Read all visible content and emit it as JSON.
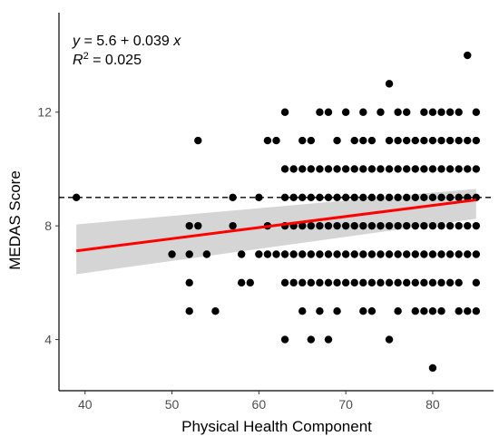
{
  "chart_data": {
    "type": "scatter",
    "title": "",
    "xlabel": "Physical Health Component",
    "ylabel": "MEDAS Score",
    "xlim": [
      37,
      87
    ],
    "ylim": [
      2.2,
      15.5
    ],
    "x_ticks": [
      40,
      50,
      60,
      70,
      80
    ],
    "y_ticks": [
      4,
      8,
      12
    ],
    "grid": false,
    "legend": "none",
    "reference_line": {
      "y": 9,
      "style": "dashed",
      "color": "#000000"
    },
    "regression": {
      "intercept": 5.6,
      "slope": 0.039,
      "x_range": [
        39,
        85
      ],
      "ci_lower": [
        6.3,
        8.25
      ],
      "ci_upper": [
        8.05,
        9.3
      ],
      "color": "#ff0000",
      "band_color": "#d3d3d3"
    },
    "annotation": {
      "line1_var": "y",
      "line1_rest": " = 5.6 + 0.039 ",
      "line1_x": "x",
      "line2_var": "R",
      "line2_sup": "2",
      "line2_rest": " = 0.025"
    },
    "points": [
      [
        39,
        9
      ],
      [
        50,
        7
      ],
      [
        52,
        8
      ],
      [
        52,
        7
      ],
      [
        52,
        6
      ],
      [
        52,
        5
      ],
      [
        53,
        11
      ],
      [
        53,
        8
      ],
      [
        54,
        7
      ],
      [
        55,
        5
      ],
      [
        57,
        9
      ],
      [
        57,
        8
      ],
      [
        58,
        7
      ],
      [
        58,
        6
      ],
      [
        59,
        6
      ],
      [
        60,
        9
      ],
      [
        60,
        7
      ],
      [
        61,
        11
      ],
      [
        61,
        8
      ],
      [
        61,
        7
      ],
      [
        62,
        11
      ],
      [
        62,
        7
      ],
      [
        63,
        12
      ],
      [
        63,
        10
      ],
      [
        63,
        9
      ],
      [
        63,
        8
      ],
      [
        63,
        7
      ],
      [
        63,
        6
      ],
      [
        63,
        4
      ],
      [
        64,
        10
      ],
      [
        64,
        9
      ],
      [
        64,
        8
      ],
      [
        64,
        7
      ],
      [
        64,
        6
      ],
      [
        65,
        11
      ],
      [
        65,
        10
      ],
      [
        65,
        9
      ],
      [
        65,
        8
      ],
      [
        65,
        7
      ],
      [
        65,
        6
      ],
      [
        65,
        5
      ],
      [
        66,
        11
      ],
      [
        66,
        10
      ],
      [
        66,
        9
      ],
      [
        66,
        8
      ],
      [
        66,
        7
      ],
      [
        66,
        6
      ],
      [
        66,
        4
      ],
      [
        67,
        12
      ],
      [
        67,
        10
      ],
      [
        67,
        9
      ],
      [
        67,
        8
      ],
      [
        67,
        7
      ],
      [
        67,
        6
      ],
      [
        67,
        5
      ],
      [
        68,
        12
      ],
      [
        68,
        10
      ],
      [
        68,
        9
      ],
      [
        68,
        8
      ],
      [
        68,
        7
      ],
      [
        68,
        6
      ],
      [
        68,
        4
      ],
      [
        69,
        11
      ],
      [
        69,
        10
      ],
      [
        69,
        9
      ],
      [
        69,
        8
      ],
      [
        69,
        7
      ],
      [
        69,
        6
      ],
      [
        69,
        5
      ],
      [
        70,
        12
      ],
      [
        70,
        10
      ],
      [
        70,
        9
      ],
      [
        70,
        8
      ],
      [
        70,
        7
      ],
      [
        70,
        6
      ],
      [
        71,
        11
      ],
      [
        71,
        10
      ],
      [
        71,
        9
      ],
      [
        71,
        8
      ],
      [
        71,
        7
      ],
      [
        71,
        6
      ],
      [
        72,
        12
      ],
      [
        72,
        11
      ],
      [
        72,
        10
      ],
      [
        72,
        9
      ],
      [
        72,
        8
      ],
      [
        72,
        7
      ],
      [
        72,
        6
      ],
      [
        72,
        5
      ],
      [
        73,
        11
      ],
      [
        73,
        10
      ],
      [
        73,
        9
      ],
      [
        73,
        8
      ],
      [
        73,
        7
      ],
      [
        73,
        6
      ],
      [
        73,
        5
      ],
      [
        74,
        12
      ],
      [
        74,
        10
      ],
      [
        74,
        9
      ],
      [
        74,
        8
      ],
      [
        74,
        7
      ],
      [
        74,
        6
      ],
      [
        75,
        13
      ],
      [
        75,
        11
      ],
      [
        75,
        10
      ],
      [
        75,
        9
      ],
      [
        75,
        8
      ],
      [
        75,
        7
      ],
      [
        75,
        6
      ],
      [
        75,
        4
      ],
      [
        76,
        12
      ],
      [
        76,
        11
      ],
      [
        76,
        10
      ],
      [
        76,
        9
      ],
      [
        76,
        8
      ],
      [
        76,
        7
      ],
      [
        76,
        6
      ],
      [
        76,
        5
      ],
      [
        77,
        12
      ],
      [
        77,
        11
      ],
      [
        77,
        10
      ],
      [
        77,
        9
      ],
      [
        77,
        8
      ],
      [
        77,
        7
      ],
      [
        77,
        6
      ],
      [
        78,
        11
      ],
      [
        78,
        10
      ],
      [
        78,
        9
      ],
      [
        78,
        8
      ],
      [
        78,
        7
      ],
      [
        78,
        6
      ],
      [
        78,
        5
      ],
      [
        79,
        12
      ],
      [
        79,
        11
      ],
      [
        79,
        10
      ],
      [
        79,
        9
      ],
      [
        79,
        8
      ],
      [
        79,
        7
      ],
      [
        79,
        6
      ],
      [
        79,
        5
      ],
      [
        80,
        12
      ],
      [
        80,
        11
      ],
      [
        80,
        10
      ],
      [
        80,
        9
      ],
      [
        80,
        8
      ],
      [
        80,
        7
      ],
      [
        80,
        6
      ],
      [
        80,
        5
      ],
      [
        80,
        3
      ],
      [
        81,
        12
      ],
      [
        81,
        11
      ],
      [
        81,
        10
      ],
      [
        81,
        9
      ],
      [
        81,
        8
      ],
      [
        81,
        7
      ],
      [
        81,
        6
      ],
      [
        81,
        5
      ],
      [
        82,
        12
      ],
      [
        82,
        11
      ],
      [
        82,
        10
      ],
      [
        82,
        9
      ],
      [
        82,
        8
      ],
      [
        82,
        7
      ],
      [
        82,
        6
      ],
      [
        83,
        12
      ],
      [
        83,
        11
      ],
      [
        83,
        10
      ],
      [
        83,
        9
      ],
      [
        83,
        8
      ],
      [
        83,
        7
      ],
      [
        83,
        6
      ],
      [
        83,
        5
      ],
      [
        84,
        14
      ],
      [
        84,
        11
      ],
      [
        84,
        10
      ],
      [
        84,
        9
      ],
      [
        84,
        8
      ],
      [
        84,
        7
      ],
      [
        84,
        5
      ],
      [
        85,
        12
      ],
      [
        85,
        11
      ],
      [
        85,
        10
      ],
      [
        85,
        9
      ],
      [
        85,
        8
      ],
      [
        85,
        7
      ],
      [
        85,
        6
      ],
      [
        85,
        5
      ]
    ]
  }
}
